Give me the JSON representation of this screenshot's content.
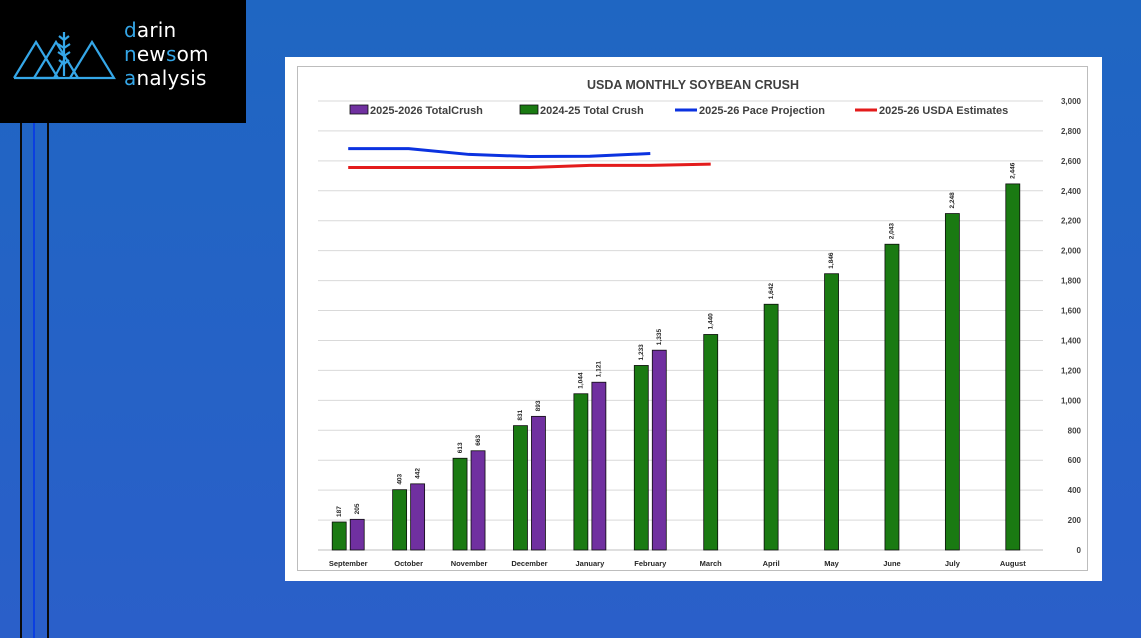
{
  "brand": {
    "line1_first": "d",
    "line1_rest": "arin",
    "line2_first": "n",
    "line2_mid": "ew",
    "line2_rest": "som",
    "line3_first": "a",
    "line3_rest": "nalysis"
  },
  "colors": {
    "background": "#2161c5",
    "accent": "#35a7e8",
    "series_2025_26": "#7030a0",
    "series_2024_25": "#1a7a12",
    "pace_projection": "#0b32e0",
    "usda_estimates": "#e31b1b"
  },
  "chart_data": {
    "type": "bar",
    "title": "USDA MONTHLY SOYBEAN CRUSH",
    "categories": [
      "September",
      "October",
      "November",
      "December",
      "January",
      "February",
      "March",
      "April",
      "May",
      "June",
      "July",
      "August"
    ],
    "ylim": [
      0,
      3000
    ],
    "yticks": [
      0,
      200,
      400,
      600,
      800,
      "1,000",
      "1,200",
      "1,400",
      "1,600",
      "1,800",
      "2,000",
      "2,200",
      "2,400",
      "2,600",
      "2,800",
      "3,000"
    ],
    "y_axis_position": "right",
    "grid": true,
    "legend_position": "top",
    "series": [
      {
        "name": "2025-2026 TotalCrush",
        "kind": "bar",
        "color": "#7030a0",
        "values": [
          205,
          442,
          663,
          893,
          1121,
          1335,
          null,
          null,
          null,
          null,
          null,
          null
        ],
        "labels": [
          "205",
          "442",
          "663",
          "893",
          "1,121",
          "1,335"
        ]
      },
      {
        "name": "2024-25 Total Crush",
        "kind": "bar",
        "color": "#1a7a12",
        "values": [
          187,
          403,
          613,
          831,
          1044,
          1233,
          1440,
          1642,
          1846,
          2043,
          2248,
          2446
        ],
        "labels": [
          "187",
          "403",
          "613",
          "831",
          "1,044",
          "1,233",
          "1,440",
          "1,642",
          "1,846",
          "2,043",
          "2,248",
          "2,446"
        ]
      },
      {
        "name": "2025-26 Pace Projection",
        "kind": "line",
        "color": "#0b32e0",
        "values": [
          2682,
          2682,
          2643,
          2629,
          2631,
          2649,
          null,
          null,
          null,
          null,
          null,
          null
        ]
      },
      {
        "name": "2025-26 USDA Estimates",
        "kind": "line",
        "color": "#e31b1b",
        "values": [
          2556,
          2556,
          2556,
          2556,
          2570,
          2570,
          2578,
          null,
          null,
          null,
          null,
          null
        ]
      }
    ]
  }
}
